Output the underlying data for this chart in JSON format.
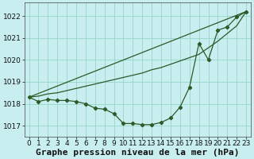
{
  "xlabel": "Graphe pression niveau de la mer (hPa)",
  "background_color": "#c8eef0",
  "grid_color": "#98d4c8",
  "line_color": "#2d5a27",
  "xlim": [
    -0.5,
    23.5
  ],
  "ylim": [
    1016.5,
    1022.6
  ],
  "yticks": [
    1017,
    1018,
    1019,
    1020,
    1021,
    1022
  ],
  "xticks": [
    0,
    1,
    2,
    3,
    4,
    5,
    6,
    7,
    8,
    9,
    10,
    11,
    12,
    13,
    14,
    15,
    16,
    17,
    18,
    19,
    20,
    21,
    22,
    23
  ],
  "line1_x": [
    0,
    1,
    2,
    3,
    4,
    5,
    6,
    7,
    8,
    9,
    10,
    11,
    12,
    13,
    14,
    15,
    16,
    17,
    18,
    19,
    20,
    21,
    22,
    23
  ],
  "line1_y": [
    1018.3,
    1018.1,
    1018.2,
    1018.15,
    1018.15,
    1018.1,
    1018.0,
    1017.8,
    1017.75,
    1017.55,
    1017.1,
    1017.1,
    1017.05,
    1017.05,
    1017.15,
    1017.35,
    1017.85,
    1018.75,
    1020.75,
    1020.0,
    1021.35,
    1021.5,
    1021.95,
    1022.2
  ],
  "line2_x": [
    0,
    23
  ],
  "line2_y": [
    1018.3,
    1022.2
  ],
  "line3_x": [
    0,
    1,
    2,
    3,
    4,
    5,
    6,
    7,
    8,
    9,
    10,
    11,
    12,
    13,
    14,
    15,
    16,
    17,
    18,
    19,
    20,
    21,
    22,
    23
  ],
  "line3_y": [
    1018.3,
    1018.35,
    1018.45,
    1018.5,
    1018.6,
    1018.7,
    1018.8,
    1018.9,
    1019.0,
    1019.1,
    1019.2,
    1019.3,
    1019.4,
    1019.55,
    1019.65,
    1019.8,
    1019.95,
    1020.1,
    1020.25,
    1020.55,
    1020.85,
    1021.2,
    1021.55,
    1022.2
  ],
  "xlabel_fontsize": 8,
  "tick_fontsize": 6.5
}
